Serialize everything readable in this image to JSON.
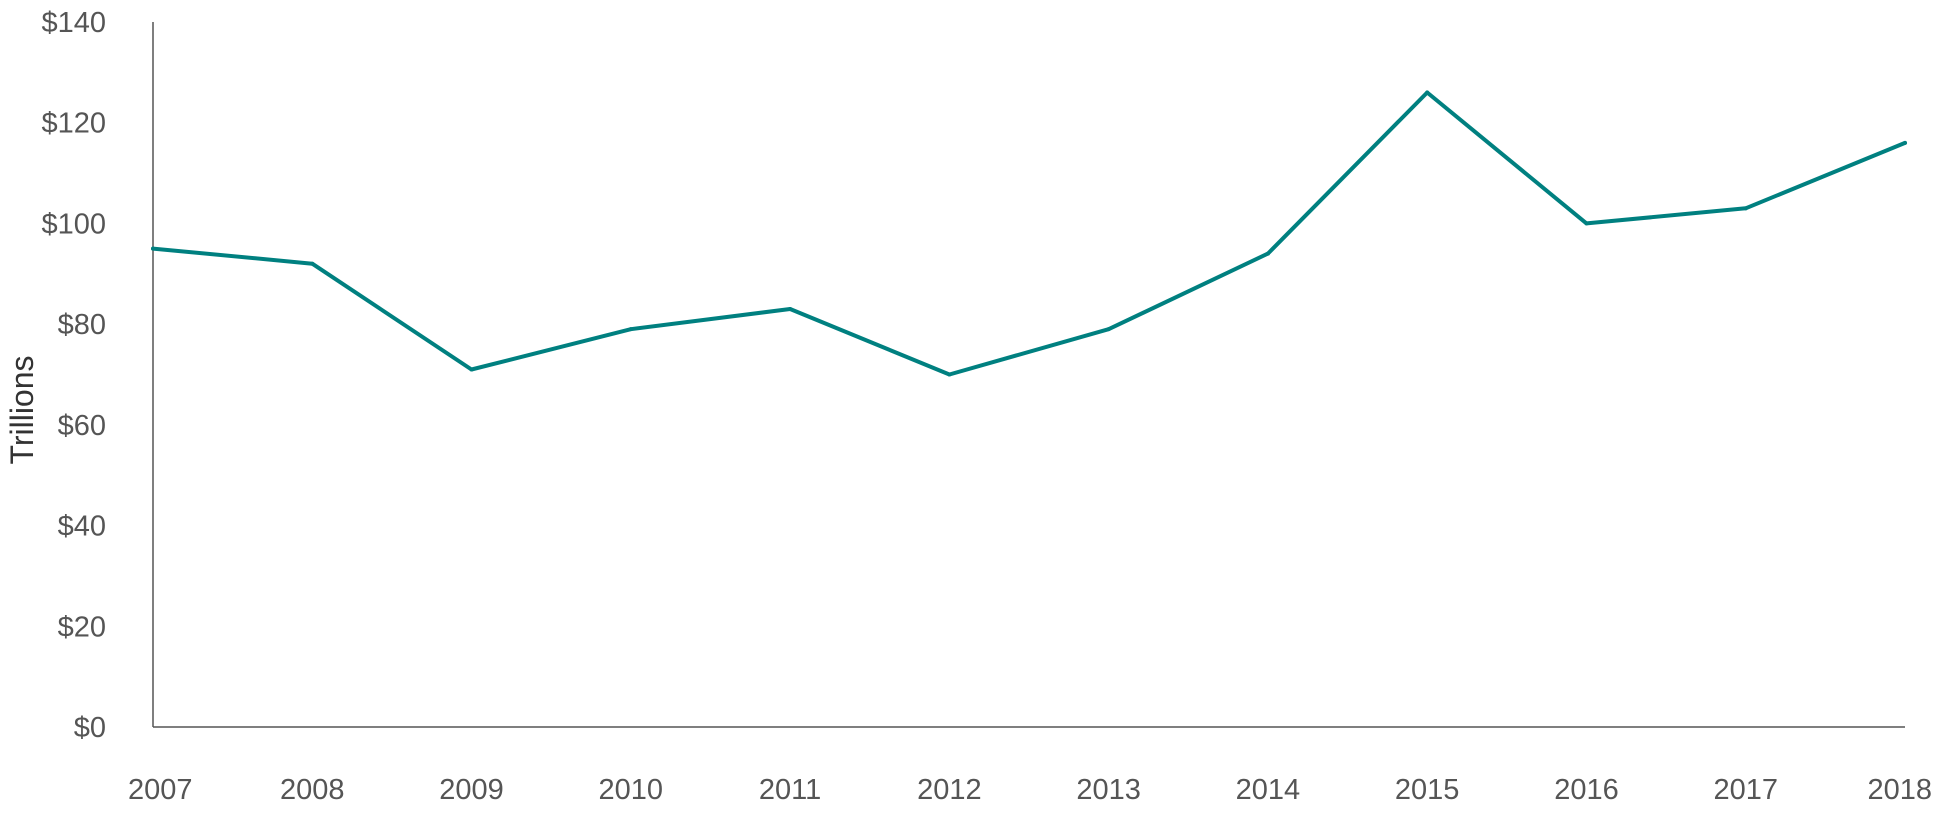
{
  "chart_data": {
    "type": "line",
    "title": "",
    "xlabel": "",
    "ylabel": "Trillions",
    "x": [
      "2007",
      "2008",
      "2009",
      "2010",
      "2011",
      "2012",
      "2013",
      "2014",
      "2015",
      "2016",
      "2017",
      "2018"
    ],
    "series": [
      {
        "values": [
          95,
          92,
          71,
          79,
          83,
          70,
          79,
          94,
          126,
          100,
          103,
          116
        ],
        "color": "#008080"
      }
    ],
    "yticks": [
      "$0",
      "$20",
      "$40",
      "$60",
      "$80",
      "$100",
      "$120",
      "$140"
    ],
    "ylim": [
      0,
      140
    ],
    "grid": false,
    "legend": "none"
  }
}
